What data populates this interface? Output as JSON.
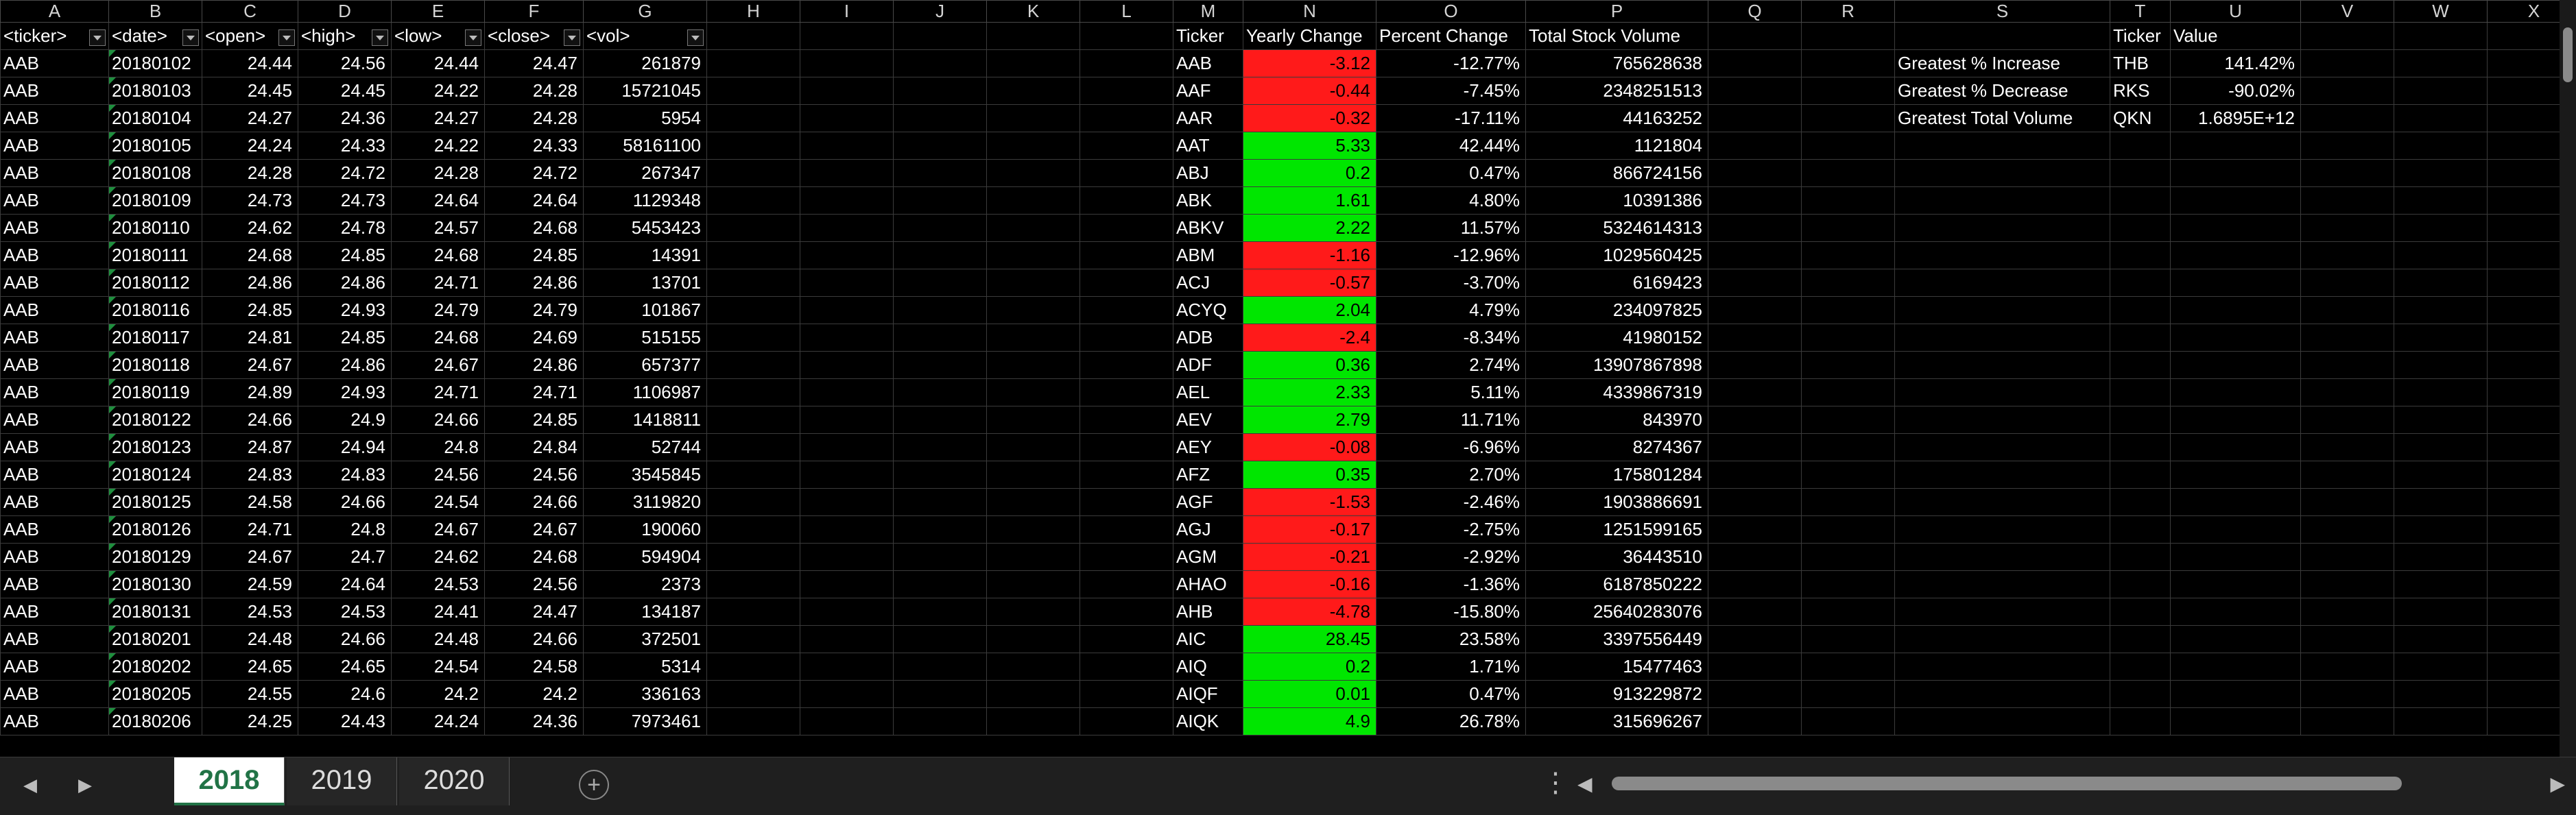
{
  "columns": [
    "A",
    "B",
    "C",
    "D",
    "E",
    "F",
    "G",
    "H",
    "I",
    "J",
    "K",
    "L",
    "M",
    "N",
    "O",
    "P",
    "Q",
    "R",
    "S",
    "T",
    "U",
    "V",
    "W",
    "X"
  ],
  "raw_headers": [
    "<ticker>",
    "<date>",
    "<open>",
    "<high>",
    "<low>",
    "<close>",
    "<vol>"
  ],
  "raw_rows": [
    [
      "AAB",
      "20180102",
      "24.44",
      "24.56",
      "24.44",
      "24.47",
      "261879"
    ],
    [
      "AAB",
      "20180103",
      "24.45",
      "24.45",
      "24.22",
      "24.28",
      "15721045"
    ],
    [
      "AAB",
      "20180104",
      "24.27",
      "24.36",
      "24.27",
      "24.28",
      "5954"
    ],
    [
      "AAB",
      "20180105",
      "24.24",
      "24.33",
      "24.22",
      "24.33",
      "58161100"
    ],
    [
      "AAB",
      "20180108",
      "24.28",
      "24.72",
      "24.28",
      "24.72",
      "267347"
    ],
    [
      "AAB",
      "20180109",
      "24.73",
      "24.73",
      "24.64",
      "24.64",
      "1129348"
    ],
    [
      "AAB",
      "20180110",
      "24.62",
      "24.78",
      "24.57",
      "24.68",
      "5453423"
    ],
    [
      "AAB",
      "20180111",
      "24.68",
      "24.85",
      "24.68",
      "24.85",
      "14391"
    ],
    [
      "AAB",
      "20180112",
      "24.86",
      "24.86",
      "24.71",
      "24.86",
      "13701"
    ],
    [
      "AAB",
      "20180116",
      "24.85",
      "24.93",
      "24.79",
      "24.79",
      "101867"
    ],
    [
      "AAB",
      "20180117",
      "24.81",
      "24.85",
      "24.68",
      "24.69",
      "515155"
    ],
    [
      "AAB",
      "20180118",
      "24.67",
      "24.86",
      "24.67",
      "24.86",
      "657377"
    ],
    [
      "AAB",
      "20180119",
      "24.89",
      "24.93",
      "24.71",
      "24.71",
      "1106987"
    ],
    [
      "AAB",
      "20180122",
      "24.66",
      "24.9",
      "24.66",
      "24.85",
      "1418811"
    ],
    [
      "AAB",
      "20180123",
      "24.87",
      "24.94",
      "24.8",
      "24.84",
      "52744"
    ],
    [
      "AAB",
      "20180124",
      "24.83",
      "24.83",
      "24.56",
      "24.56",
      "3545845"
    ],
    [
      "AAB",
      "20180125",
      "24.58",
      "24.66",
      "24.54",
      "24.66",
      "3119820"
    ],
    [
      "AAB",
      "20180126",
      "24.71",
      "24.8",
      "24.67",
      "24.67",
      "190060"
    ],
    [
      "AAB",
      "20180129",
      "24.67",
      "24.7",
      "24.62",
      "24.68",
      "594904"
    ],
    [
      "AAB",
      "20180130",
      "24.59",
      "24.64",
      "24.53",
      "24.56",
      "2373"
    ],
    [
      "AAB",
      "20180131",
      "24.53",
      "24.53",
      "24.41",
      "24.47",
      "134187"
    ],
    [
      "AAB",
      "20180201",
      "24.48",
      "24.66",
      "24.48",
      "24.66",
      "372501"
    ],
    [
      "AAB",
      "20180202",
      "24.65",
      "24.65",
      "24.54",
      "24.58",
      "5314"
    ],
    [
      "AAB",
      "20180205",
      "24.55",
      "24.6",
      "24.2",
      "24.2",
      "336163"
    ],
    [
      "AAB",
      "20180206",
      "24.25",
      "24.43",
      "24.24",
      "24.36",
      "7973461"
    ]
  ],
  "summary_headers": [
    "Ticker",
    "Yearly Change",
    "Percent Change",
    "Total Stock Volume"
  ],
  "summary_rows": [
    [
      "AAB",
      "-3.12",
      "-12.77%",
      "765628638"
    ],
    [
      "AAF",
      "-0.44",
      "-7.45%",
      "2348251513"
    ],
    [
      "AAR",
      "-0.32",
      "-17.11%",
      "44163252"
    ],
    [
      "AAT",
      "5.33",
      "42.44%",
      "1121804"
    ],
    [
      "ABJ",
      "0.2",
      "0.47%",
      "866724156"
    ],
    [
      "ABK",
      "1.61",
      "4.80%",
      "10391386"
    ],
    [
      "ABKV",
      "2.22",
      "11.57%",
      "5324614313"
    ],
    [
      "ABM",
      "-1.16",
      "-12.96%",
      "1029560425"
    ],
    [
      "ACJ",
      "-0.57",
      "-3.70%",
      "6169423"
    ],
    [
      "ACYQ",
      "2.04",
      "4.79%",
      "234097825"
    ],
    [
      "ADB",
      "-2.4",
      "-8.34%",
      "41980152"
    ],
    [
      "ADF",
      "0.36",
      "2.74%",
      "13907867898"
    ],
    [
      "AEL",
      "2.33",
      "5.11%",
      "4339867319"
    ],
    [
      "AEV",
      "2.79",
      "11.71%",
      "843970"
    ],
    [
      "AEY",
      "-0.08",
      "-6.96%",
      "8274367"
    ],
    [
      "AFZ",
      "0.35",
      "2.70%",
      "175801284"
    ],
    [
      "AGF",
      "-1.53",
      "-2.46%",
      "1903886691"
    ],
    [
      "AGJ",
      "-0.17",
      "-2.75%",
      "1251599165"
    ],
    [
      "AGM",
      "-0.21",
      "-2.92%",
      "36443510"
    ],
    [
      "AHAO",
      "-0.16",
      "-1.36%",
      "6187850222"
    ],
    [
      "AHB",
      "-4.78",
      "-15.80%",
      "25640283076"
    ],
    [
      "AIC",
      "28.45",
      "23.58%",
      "3397556449"
    ],
    [
      "AIQ",
      "0.2",
      "1.71%",
      "15477463"
    ],
    [
      "AIQF",
      "0.01",
      "0.47%",
      "913229872"
    ],
    [
      "AIQK",
      "4.9",
      "26.78%",
      "315696267"
    ]
  ],
  "greatest_headers": [
    "Ticker",
    "Value"
  ],
  "greatest_rows": [
    [
      "Greatest % Increase",
      "THB",
      "141.42%"
    ],
    [
      "Greatest % Decrease",
      "RKS",
      "-90.02%"
    ],
    [
      "Greatest Total Volume",
      "QKN",
      "1.6895E+12"
    ]
  ],
  "colors": {
    "positive": "#00e600",
    "negative": "#ff1a1a",
    "active_tab": "#217346"
  },
  "sheet_tabs": [
    "2018",
    "2019",
    "2020"
  ],
  "active_tab_index": 0,
  "icons": {
    "prev": "chevron-left-icon",
    "next": "chevron-right-icon",
    "add": "plus-circle-icon",
    "more": "more-dots-icon"
  }
}
